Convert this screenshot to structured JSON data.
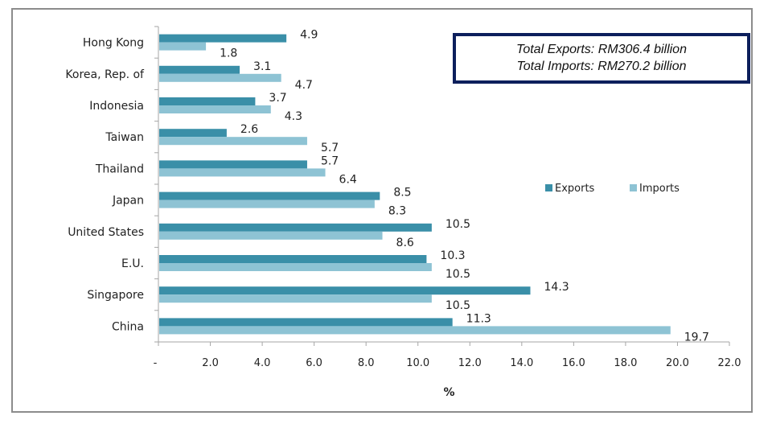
{
  "chart_data": {
    "type": "bar",
    "orientation": "horizontal",
    "categories": [
      "Hong Kong",
      "Korea, Rep. of",
      "Indonesia",
      "Taiwan",
      "Thailand",
      "Japan",
      "United States",
      "E.U.",
      "Singapore",
      "China"
    ],
    "series": [
      {
        "name": "Exports",
        "color": "#3a8fa8",
        "values": [
          4.9,
          3.1,
          3.7,
          2.6,
          5.7,
          8.5,
          10.5,
          10.3,
          14.3,
          11.3
        ]
      },
      {
        "name": "Imports",
        "color": "#8ec3d4",
        "values": [
          1.8,
          4.7,
          4.3,
          5.7,
          6.4,
          8.3,
          8.6,
          10.5,
          10.5,
          19.7
        ]
      }
    ],
    "title": "",
    "xlabel": "%",
    "ylabel": "",
    "xlim": [
      0,
      22
    ],
    "xticks": [
      0,
      2,
      4,
      6,
      8,
      10,
      12,
      14,
      16,
      18,
      20,
      22
    ],
    "xtick_labels": [
      "-",
      "2.0",
      "4.0",
      "6.0",
      "8.0",
      "10.0",
      "12.0",
      "14.0",
      "16.0",
      "18.0",
      "20.0",
      "22.0"
    ],
    "grid": false,
    "legend": {
      "position": "right",
      "entries": [
        "Exports",
        "Imports"
      ]
    },
    "annotations": [
      "Total Exports: RM306.4 billion",
      "Total Imports: RM270.2 billion"
    ]
  },
  "totals": {
    "exports": "Total Exports: RM306.4 billion",
    "imports": "Total Imports: RM270.2 billion"
  }
}
